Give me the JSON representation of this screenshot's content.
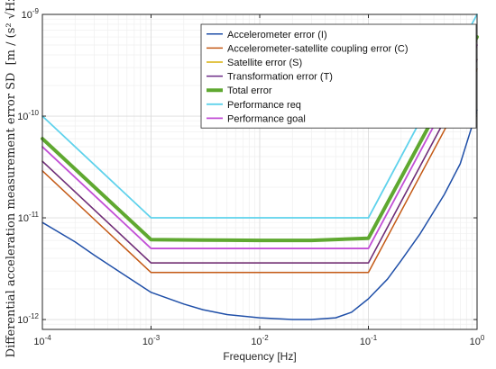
{
  "chart_data": {
    "type": "line",
    "xlabel": "Frequency [Hz]",
    "ylabel": "Differential acceleration measurement error SD",
    "ylabel_unit": "[m / (s² √Hz)]",
    "x_scale": "log",
    "y_scale": "log",
    "xlim": [
      0.0001,
      1
    ],
    "ylim": [
      8e-13,
      1e-09
    ],
    "x_ticks": [
      0.0001,
      0.001,
      0.01,
      0.1,
      1
    ],
    "x_tick_labels": [
      {
        "base": "10",
        "exp": "-4"
      },
      {
        "base": "10",
        "exp": "-3"
      },
      {
        "base": "10",
        "exp": "-2"
      },
      {
        "base": "10",
        "exp": "-1"
      },
      {
        "base": "10",
        "exp": "0"
      }
    ],
    "y_ticks": [
      1e-12,
      1e-11,
      1e-10,
      1e-09
    ],
    "y_tick_labels": [
      {
        "base": "10",
        "exp": "-12"
      },
      {
        "base": "10",
        "exp": "-11"
      },
      {
        "base": "10",
        "exp": "-10"
      },
      {
        "base": "10",
        "exp": "-9"
      }
    ],
    "grid": "major and minor",
    "legend_position": "top-right",
    "series": [
      {
        "name": "Accelerometer error (I)",
        "color": "#1f4fa8",
        "width": 1.5,
        "x": [
          0.0001,
          0.0002,
          0.0003,
          0.0005,
          0.001,
          0.002,
          0.003,
          0.005,
          0.01,
          0.02,
          0.03,
          0.05,
          0.07,
          0.1,
          0.15,
          0.2,
          0.3,
          0.5,
          0.7,
          1
        ],
        "y": [
          9e-12,
          5.8e-12,
          4.3e-12,
          3e-12,
          1.85e-12,
          1.42e-12,
          1.25e-12,
          1.12e-12,
          1.04e-12,
          1e-12,
          1e-12,
          1.04e-12,
          1.18e-12,
          1.6e-12,
          2.5e-12,
          3.8e-12,
          7e-12,
          1.7e-11,
          3.4e-11,
          1.15e-10
        ]
      },
      {
        "name": "Accelerometer-satellite coupling error (C)",
        "color": "#c45a16",
        "width": 1.5,
        "x": [
          0.0001,
          0.001,
          0.1,
          1
        ],
        "y": [
          2.9e-11,
          2.9e-12,
          2.9e-12,
          2.9e-10
        ]
      },
      {
        "name": "Satellite error (S)",
        "color": "#d9b00c",
        "width": 1.5,
        "x": [
          0.0001,
          0.001,
          0.1,
          1
        ],
        "y": [
          3.6e-11,
          3.6e-12,
          3.6e-12,
          3.6e-10
        ]
      },
      {
        "name": "Transformation error (T)",
        "color": "#6b2a86",
        "width": 1.5,
        "x": [
          0.0001,
          0.001,
          0.1,
          1
        ],
        "y": [
          3.6e-11,
          3.6e-12,
          3.6e-12,
          3.6e-10
        ]
      },
      {
        "name": "Total error",
        "color": "#5fa830",
        "width": 4,
        "x": [
          0.0001,
          0.001,
          0.003,
          0.01,
          0.03,
          0.1,
          1
        ],
        "y": [
          6e-11,
          6.1e-12,
          6.05e-12,
          6e-12,
          6e-12,
          6.3e-12,
          6e-10
        ]
      },
      {
        "name": "Performance req",
        "color": "#5fd2ec",
        "width": 1.8,
        "x": [
          0.0001,
          0.001,
          0.1,
          1
        ],
        "y": [
          1e-10,
          1e-11,
          1e-11,
          1e-09
        ]
      },
      {
        "name": "Performance goal",
        "color": "#c24fd6",
        "width": 1.8,
        "x": [
          0.0001,
          0.001,
          0.1,
          1
        ],
        "y": [
          5e-11,
          5e-12,
          5e-12,
          5e-10
        ]
      }
    ]
  }
}
